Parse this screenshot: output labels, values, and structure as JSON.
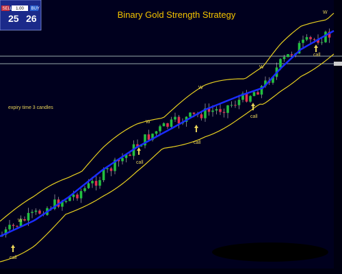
{
  "header": {
    "title": "Binary Gold Strength Strategy"
  },
  "trade_panel": {
    "sell": "SELL",
    "lot": "1.00",
    "buy": "BUY",
    "sell_price": "25",
    "buy_price": "26"
  },
  "annotations": {
    "expiry": "expiry time 3 candles",
    "calls": [
      "call",
      "call",
      "call",
      "call",
      "call"
    ],
    "waves": [
      "W",
      "W",
      "W",
      "W",
      "W"
    ]
  }
}
